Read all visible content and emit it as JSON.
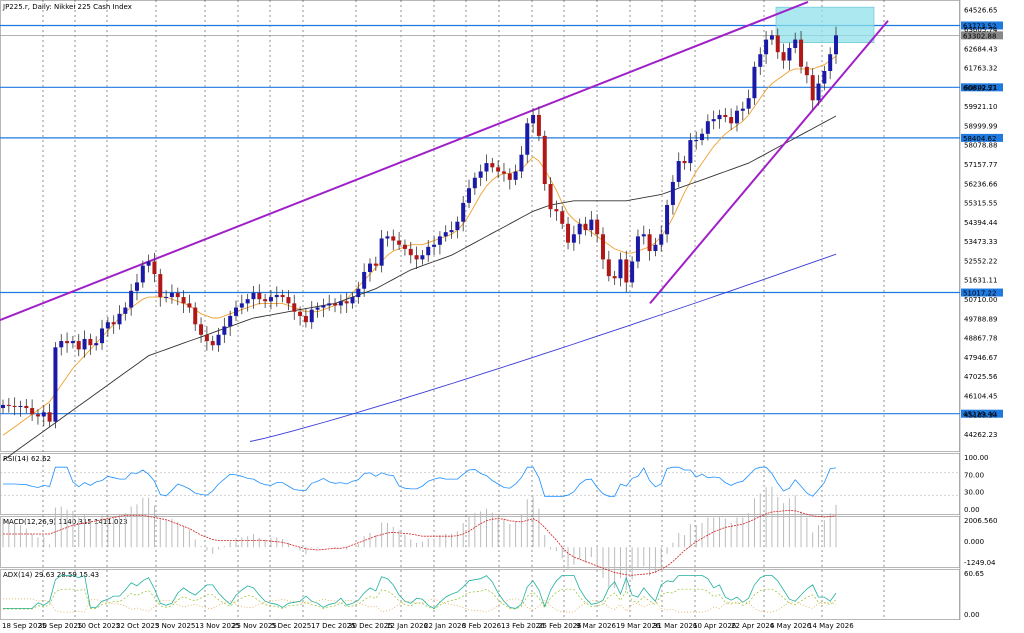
{
  "chart_data": {
    "type": "candlestick",
    "title": "JP225.r, Daily: Nikkei 225 Cash Index",
    "price_axis": {
      "range": [
        43400,
        64800
      ],
      "ticks": [
        "64526.65",
        "63605.74",
        "62684.43",
        "61763.32",
        "60842.21",
        "59921.10",
        "58999.99",
        "58078.88",
        "57157.77",
        "56236.66",
        "55315.55",
        "54394.44",
        "53473.33",
        "52552.22",
        "51631.11",
        "50710.00",
        "49788.89",
        "48867.78",
        "47946.67",
        "47025.56",
        "46104.45",
        "45183.34",
        "44262.23"
      ]
    },
    "date_ticks": [
      "18 Sep 2025",
      "30 Sep 2025",
      "10 Oct 2025",
      "22 Oct 2025",
      "3 Nov 2025",
      "13 Nov 2025",
      "25 Nov 2025",
      "5 Dec 2025",
      "17 Dec 2025",
      "30 Dec 2025",
      "12 Jan 2026",
      "22 Jan 2026",
      "3 Feb 2026",
      "13 Feb 2026",
      "25 Feb 2026",
      "9 Mar 2026",
      "19 Mar 2026",
      "31 Mar 2026",
      "10 Apr 2026",
      "22 Apr 2026",
      "4 May 2026",
      "14 May 2026"
    ],
    "horizontal_levels": [
      {
        "label": "63773.52",
        "value": 63773.52
      },
      {
        "label": "60819.57",
        "value": 60819.57
      },
      {
        "label": "58404.62",
        "value": 58404.62
      },
      {
        "label": "51017.22",
        "value": 51017.22
      },
      {
        "label": "45229.40",
        "value": 45229.4
      }
    ],
    "current_price_label": "63302.88",
    "current_price": 63302.88,
    "candles_close": [
      45650,
      45600,
      45550,
      45600,
      45500,
      45200,
      45100,
      45300,
      44850,
      48400,
      48700,
      48600,
      48700,
      48300,
      48800,
      48500,
      48600,
      49300,
      49600,
      49500,
      50000,
      50300,
      51100,
      51500,
      52300,
      52500,
      51900,
      50800,
      50800,
      51000,
      50800,
      50500,
      50300,
      49500,
      49000,
      48700,
      48500,
      49000,
      49400,
      49900,
      50300,
      50500,
      50700,
      51000,
      50700,
      50600,
      50800,
      50900,
      50800,
      50500,
      50100,
      49900,
      49600,
      50200,
      50300,
      50400,
      50500,
      50400,
      50600,
      50500,
      50800,
      51200,
      52000,
      52400,
      52300,
      53600,
      53700,
      53500,
      53300,
      53100,
      52800,
      52600,
      52800,
      53200,
      53300,
      53700,
      53900,
      54000,
      54400,
      55300,
      56000,
      56500,
      56800,
      57200,
      57000,
      56800,
      56700,
      56400,
      56800,
      57600,
      59100,
      59500,
      58500,
      56200,
      55000,
      54900,
      54300,
      53400,
      53800,
      54300,
      54000,
      54500,
      53800,
      52600,
      51800,
      51700,
      52600,
      51500,
      52500,
      53700,
      53800,
      53000,
      53300,
      53800,
      55200,
      56300,
      57300,
      57200,
      58300,
      58300,
      58600,
      59200,
      59300,
      59500,
      59400,
      59100,
      59700,
      59800,
      60300,
      61800,
      62400,
      63100,
      63300,
      62500,
      62100,
      62700,
      63100,
      61800,
      61400,
      60200,
      61000,
      61600,
      62400,
      63303
    ],
    "ma_fast_close": [
      44200,
      44400,
      44600,
      44800,
      45000,
      45200,
      45400,
      45600,
      45800,
      46200,
      46600,
      47000,
      47400,
      47700,
      48000,
      48300,
      48600,
      48900,
      49200,
      49500,
      49800,
      50100,
      50300,
      50500,
      50700,
      50800,
      50800,
      50800,
      50800,
      50700,
      50600,
      50500,
      50400,
      50200,
      50000,
      49900,
      49800,
      49800,
      49900,
      50000,
      50100,
      50200,
      50300,
      50400,
      50500,
      50500,
      50500,
      50500,
      50500,
      50400,
      50300,
      50200,
      50100,
      50100,
      50100,
      50200,
      50300,
      50400,
      50500,
      50700,
      51000,
      51300,
      51600,
      51900,
      52200,
      52500,
      52800,
      53000,
      53100,
      53200,
      53300,
      53300,
      53300,
      53400,
      53500,
      53600,
      53700,
      53800,
      54000,
      54300,
      54700,
      55200,
      55700,
      56100,
      56400,
      56600,
      56700,
      56700,
      56800,
      56900,
      57200,
      57500,
      57300,
      56900,
      56400,
      55900,
      55300,
      54800,
      54500,
      54300,
      54100,
      53900,
      53700,
      53500,
      53300,
      53100,
      53000,
      52900,
      52900,
      53000,
      53100,
      53200,
      53400,
      53700,
      54100,
      54600,
      55200,
      55800,
      56300,
      56800,
      57200,
      57600,
      58000,
      58300,
      58600,
      58800,
      59000,
      59200,
      59500,
      59900,
      60300,
      60700,
      61000,
      61200,
      61400,
      61600,
      61700,
      61700,
      61700,
      61700,
      61800,
      61900,
      62100,
      62300
    ],
    "ma_slow_close": [
      43000,
      43200,
      43400,
      43600,
      43800,
      44000,
      44200,
      44400,
      44600,
      44800,
      45000,
      45200,
      45400,
      45600,
      45800,
      46000,
      46200,
      46400,
      46600,
      46800,
      47000,
      47200,
      47400,
      47600,
      47800,
      48000,
      48100,
      48200,
      48300,
      48400,
      48500,
      48600,
      48700,
      48800,
      48900,
      49000,
      49100,
      49200,
      49300,
      49400,
      49500,
      49600,
      49700,
      49800,
      49850,
      49900,
      49950,
      50000,
      50050,
      50100,
      50150,
      50200,
      50250,
      50300,
      50350,
      50400,
      50450,
      50500,
      50600,
      50700,
      50800,
      50900,
      51000,
      51100,
      51200,
      51350,
      51500,
      51650,
      51800,
      51950,
      52100,
      52200,
      52300,
      52400,
      52500,
      52600,
      52700,
      52800,
      52950,
      53100,
      53250,
      53400,
      53550,
      53700,
      53850,
      54000,
      54150,
      54300,
      54450,
      54600,
      54750,
      54900,
      55000,
      55100,
      55200,
      55250,
      55300,
      55350,
      55400,
      55400,
      55400,
      55400,
      55400,
      55400,
      55400,
      55400,
      55400,
      55400,
      55450,
      55500,
      55550,
      55600,
      55650,
      55700,
      55800,
      55900,
      56000,
      56100,
      56200,
      56300,
      56400,
      56500,
      56600,
      56700,
      56800,
      56900,
      57000,
      57100,
      57200,
      57350,
      57500,
      57650,
      57800,
      57950,
      58100,
      58250,
      58400,
      58550,
      58700,
      58850,
      59000,
      59150,
      59300,
      59450
    ],
    "ma_long_start": 43900,
    "ma_long_end": 52850,
    "channel": {
      "upper_start": 49700,
      "upper_end": 64900,
      "lower_start": 50500,
      "lower_end": 64000
    },
    "indicators": [
      {
        "label": "RSI(14) 62.62",
        "ticks": [
          "100.00",
          "70.00",
          "30.00",
          "0.00"
        ]
      },
      {
        "label": "MACD(12,26,9) 1140.315 1411.023",
        "ticks": [
          "2006.560",
          "0.000",
          "-1249.04"
        ]
      },
      {
        "label": "ADX(14) 29.63 28.59 15.43",
        "ticks": [
          "60.65",
          "0.00"
        ]
      }
    ],
    "colors": {
      "up": "#1a1aa6",
      "down": "#b01818",
      "ma_fast": "#f0a030",
      "ma_slow": "#333333",
      "ma_long": "#3a3ad8",
      "channel": "#a020c8",
      "level": "#1f7ae0",
      "zone": "#8fe0ea"
    }
  }
}
